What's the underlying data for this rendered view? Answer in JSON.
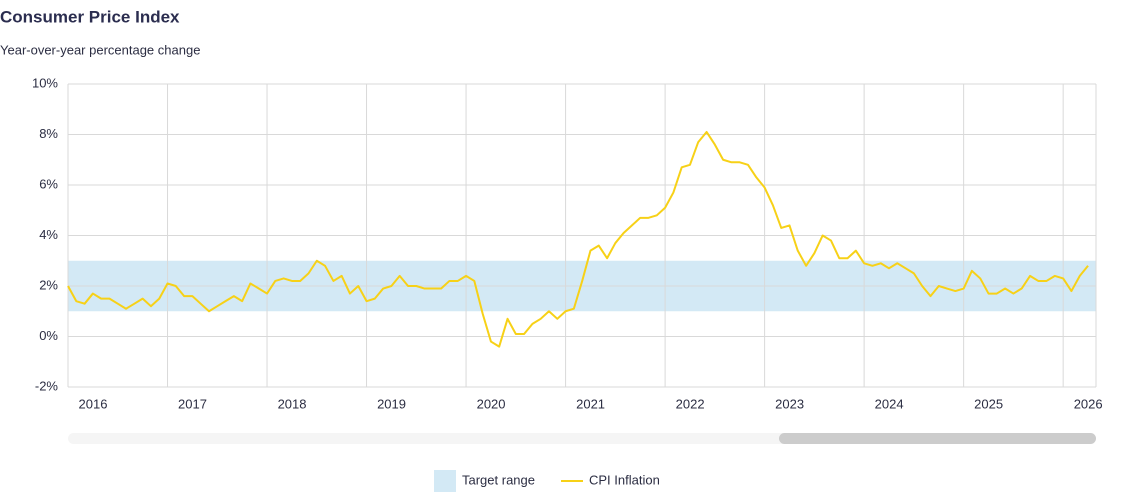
{
  "chart_data": {
    "type": "line",
    "title": "Consumer Price Index",
    "subtitle": "Year-over-year percentage change",
    "x": [
      2016,
      2016.083,
      2016.167,
      2016.25,
      2016.333,
      2016.417,
      2016.5,
      2016.583,
      2016.667,
      2016.75,
      2016.833,
      2016.917,
      2017,
      2017.083,
      2017.167,
      2017.25,
      2017.333,
      2017.417,
      2017.5,
      2017.583,
      2017.667,
      2017.75,
      2017.833,
      2017.917,
      2018,
      2018.083,
      2018.167,
      2018.25,
      2018.333,
      2018.417,
      2018.5,
      2018.583,
      2018.667,
      2018.75,
      2018.833,
      2018.917,
      2019,
      2019.083,
      2019.167,
      2019.25,
      2019.333,
      2019.417,
      2019.5,
      2019.583,
      2019.667,
      2019.75,
      2019.833,
      2019.917,
      2020,
      2020.083,
      2020.167,
      2020.25,
      2020.333,
      2020.417,
      2020.5,
      2020.583,
      2020.667,
      2020.75,
      2020.833,
      2020.917,
      2021,
      2021.083,
      2021.167,
      2021.25,
      2021.333,
      2021.417,
      2021.5,
      2021.583,
      2021.667,
      2021.75,
      2021.833,
      2021.917,
      2022,
      2022.083,
      2022.167,
      2022.25,
      2022.333,
      2022.417,
      2022.5,
      2022.583,
      2022.667,
      2022.75,
      2022.833,
      2022.917,
      2023,
      2023.083,
      2023.167,
      2023.25,
      2023.333,
      2023.417,
      2023.5,
      2023.583,
      2023.667,
      2023.75,
      2023.833,
      2023.917,
      2024,
      2024.083,
      2024.167,
      2024.25,
      2024.333,
      2024.417,
      2024.5,
      2024.583,
      2024.667,
      2024.75,
      2024.833,
      2024.917,
      2025,
      2025.083,
      2025.167,
      2025.25,
      2025.333,
      2025.417,
      2025.5,
      2025.583,
      2025.667,
      2025.75,
      2025.833,
      2025.917,
      2026,
      2026.083,
      2026.167,
      2026.25
    ],
    "series": [
      {
        "name": "CPI Inflation",
        "color": "#f7d117",
        "values": [
          2.0,
          1.4,
          1.3,
          1.7,
          1.5,
          1.5,
          1.3,
          1.1,
          1.3,
          1.5,
          1.2,
          1.5,
          2.1,
          2.0,
          1.6,
          1.6,
          1.3,
          1.0,
          1.2,
          1.4,
          1.6,
          1.4,
          2.1,
          1.9,
          1.7,
          2.2,
          2.3,
          2.2,
          2.2,
          2.5,
          3.0,
          2.8,
          2.2,
          2.4,
          1.7,
          2.0,
          1.4,
          1.5,
          1.9,
          2.0,
          2.4,
          2.0,
          2.0,
          1.9,
          1.9,
          1.9,
          2.2,
          2.2,
          2.4,
          2.2,
          0.9,
          -0.2,
          -0.4,
          0.7,
          0.1,
          0.1,
          0.5,
          0.7,
          1.0,
          0.7,
          1.0,
          1.1,
          2.2,
          3.4,
          3.6,
          3.1,
          3.7,
          4.1,
          4.4,
          4.7,
          4.7,
          4.8,
          5.1,
          5.7,
          6.7,
          6.8,
          7.7,
          8.1,
          7.6,
          7.0,
          6.9,
          6.9,
          6.8,
          6.3,
          5.9,
          5.2,
          4.3,
          4.4,
          3.4,
          2.8,
          3.3,
          4.0,
          3.8,
          3.1,
          3.1,
          3.4,
          2.9,
          2.8,
          2.9,
          2.7,
          2.9,
          2.7,
          2.5,
          2.0,
          1.6,
          2.0,
          1.9,
          1.8,
          1.9,
          2.6,
          2.3,
          1.7,
          1.7,
          1.9,
          1.7,
          1.9,
          2.4,
          2.2,
          2.2,
          2.4,
          2.3,
          1.8,
          2.4,
          2.8
        ]
      }
    ],
    "bands": [
      {
        "name": "Target range",
        "from": 1,
        "to": 3,
        "color": "#d3e9f5"
      }
    ],
    "xlim": [
      2016,
      2026.33
    ],
    "xticks": [
      2016,
      2017,
      2018,
      2019,
      2020,
      2021,
      2022,
      2023,
      2024,
      2025,
      2026
    ],
    "ylim": [
      -2,
      10
    ],
    "yticks": [
      {
        "value": -2,
        "label": "-2%"
      },
      {
        "value": 0,
        "label": "0%"
      },
      {
        "value": 2,
        "label": "2%"
      },
      {
        "value": 4,
        "label": "4%"
      },
      {
        "value": 6,
        "label": "6%"
      },
      {
        "value": 8,
        "label": "8%"
      },
      {
        "value": 10,
        "label": "10%"
      }
    ],
    "grid": true,
    "legend": "bottom"
  }
}
